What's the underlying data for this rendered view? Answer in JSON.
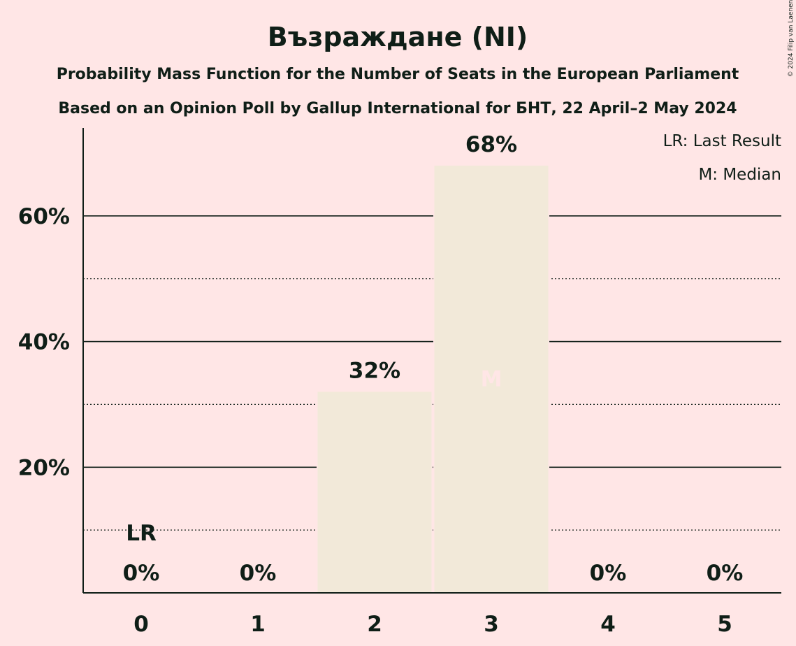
{
  "chart_data": {
    "type": "bar",
    "title": "Възраждане (NI)",
    "subtitle1": "Probability Mass Function for the Number of Seats in the European Parliament",
    "subtitle2": "Based on an Opinion Poll by Gallup International for БНТ, 22 April–2 May 2024",
    "copyright": "© 2024 Filip van Laenen",
    "legend": [
      "LR: Last Result",
      "M: Median"
    ],
    "legend_position": "top-right",
    "categories": [
      "0",
      "1",
      "2",
      "3",
      "4",
      "5"
    ],
    "values": [
      0,
      0,
      32,
      68,
      0,
      0
    ],
    "value_labels": [
      "0%",
      "0%",
      "32%",
      "68%",
      "0%",
      "0%"
    ],
    "ylim": [
      0,
      74
    ],
    "y_ticks": [
      20,
      40,
      60
    ],
    "y_tick_labels": [
      "20%",
      "40%",
      "60%"
    ],
    "y_minor_ticks": [
      10,
      30,
      50
    ],
    "last_result": {
      "category": "0",
      "label": "LR"
    },
    "median": {
      "category": "3",
      "label": "M"
    },
    "colors": {
      "background": "#FFE6E6",
      "bar": "#F2E9D9",
      "text": "#0F1E17",
      "median_label": "#FFE6E6"
    }
  }
}
